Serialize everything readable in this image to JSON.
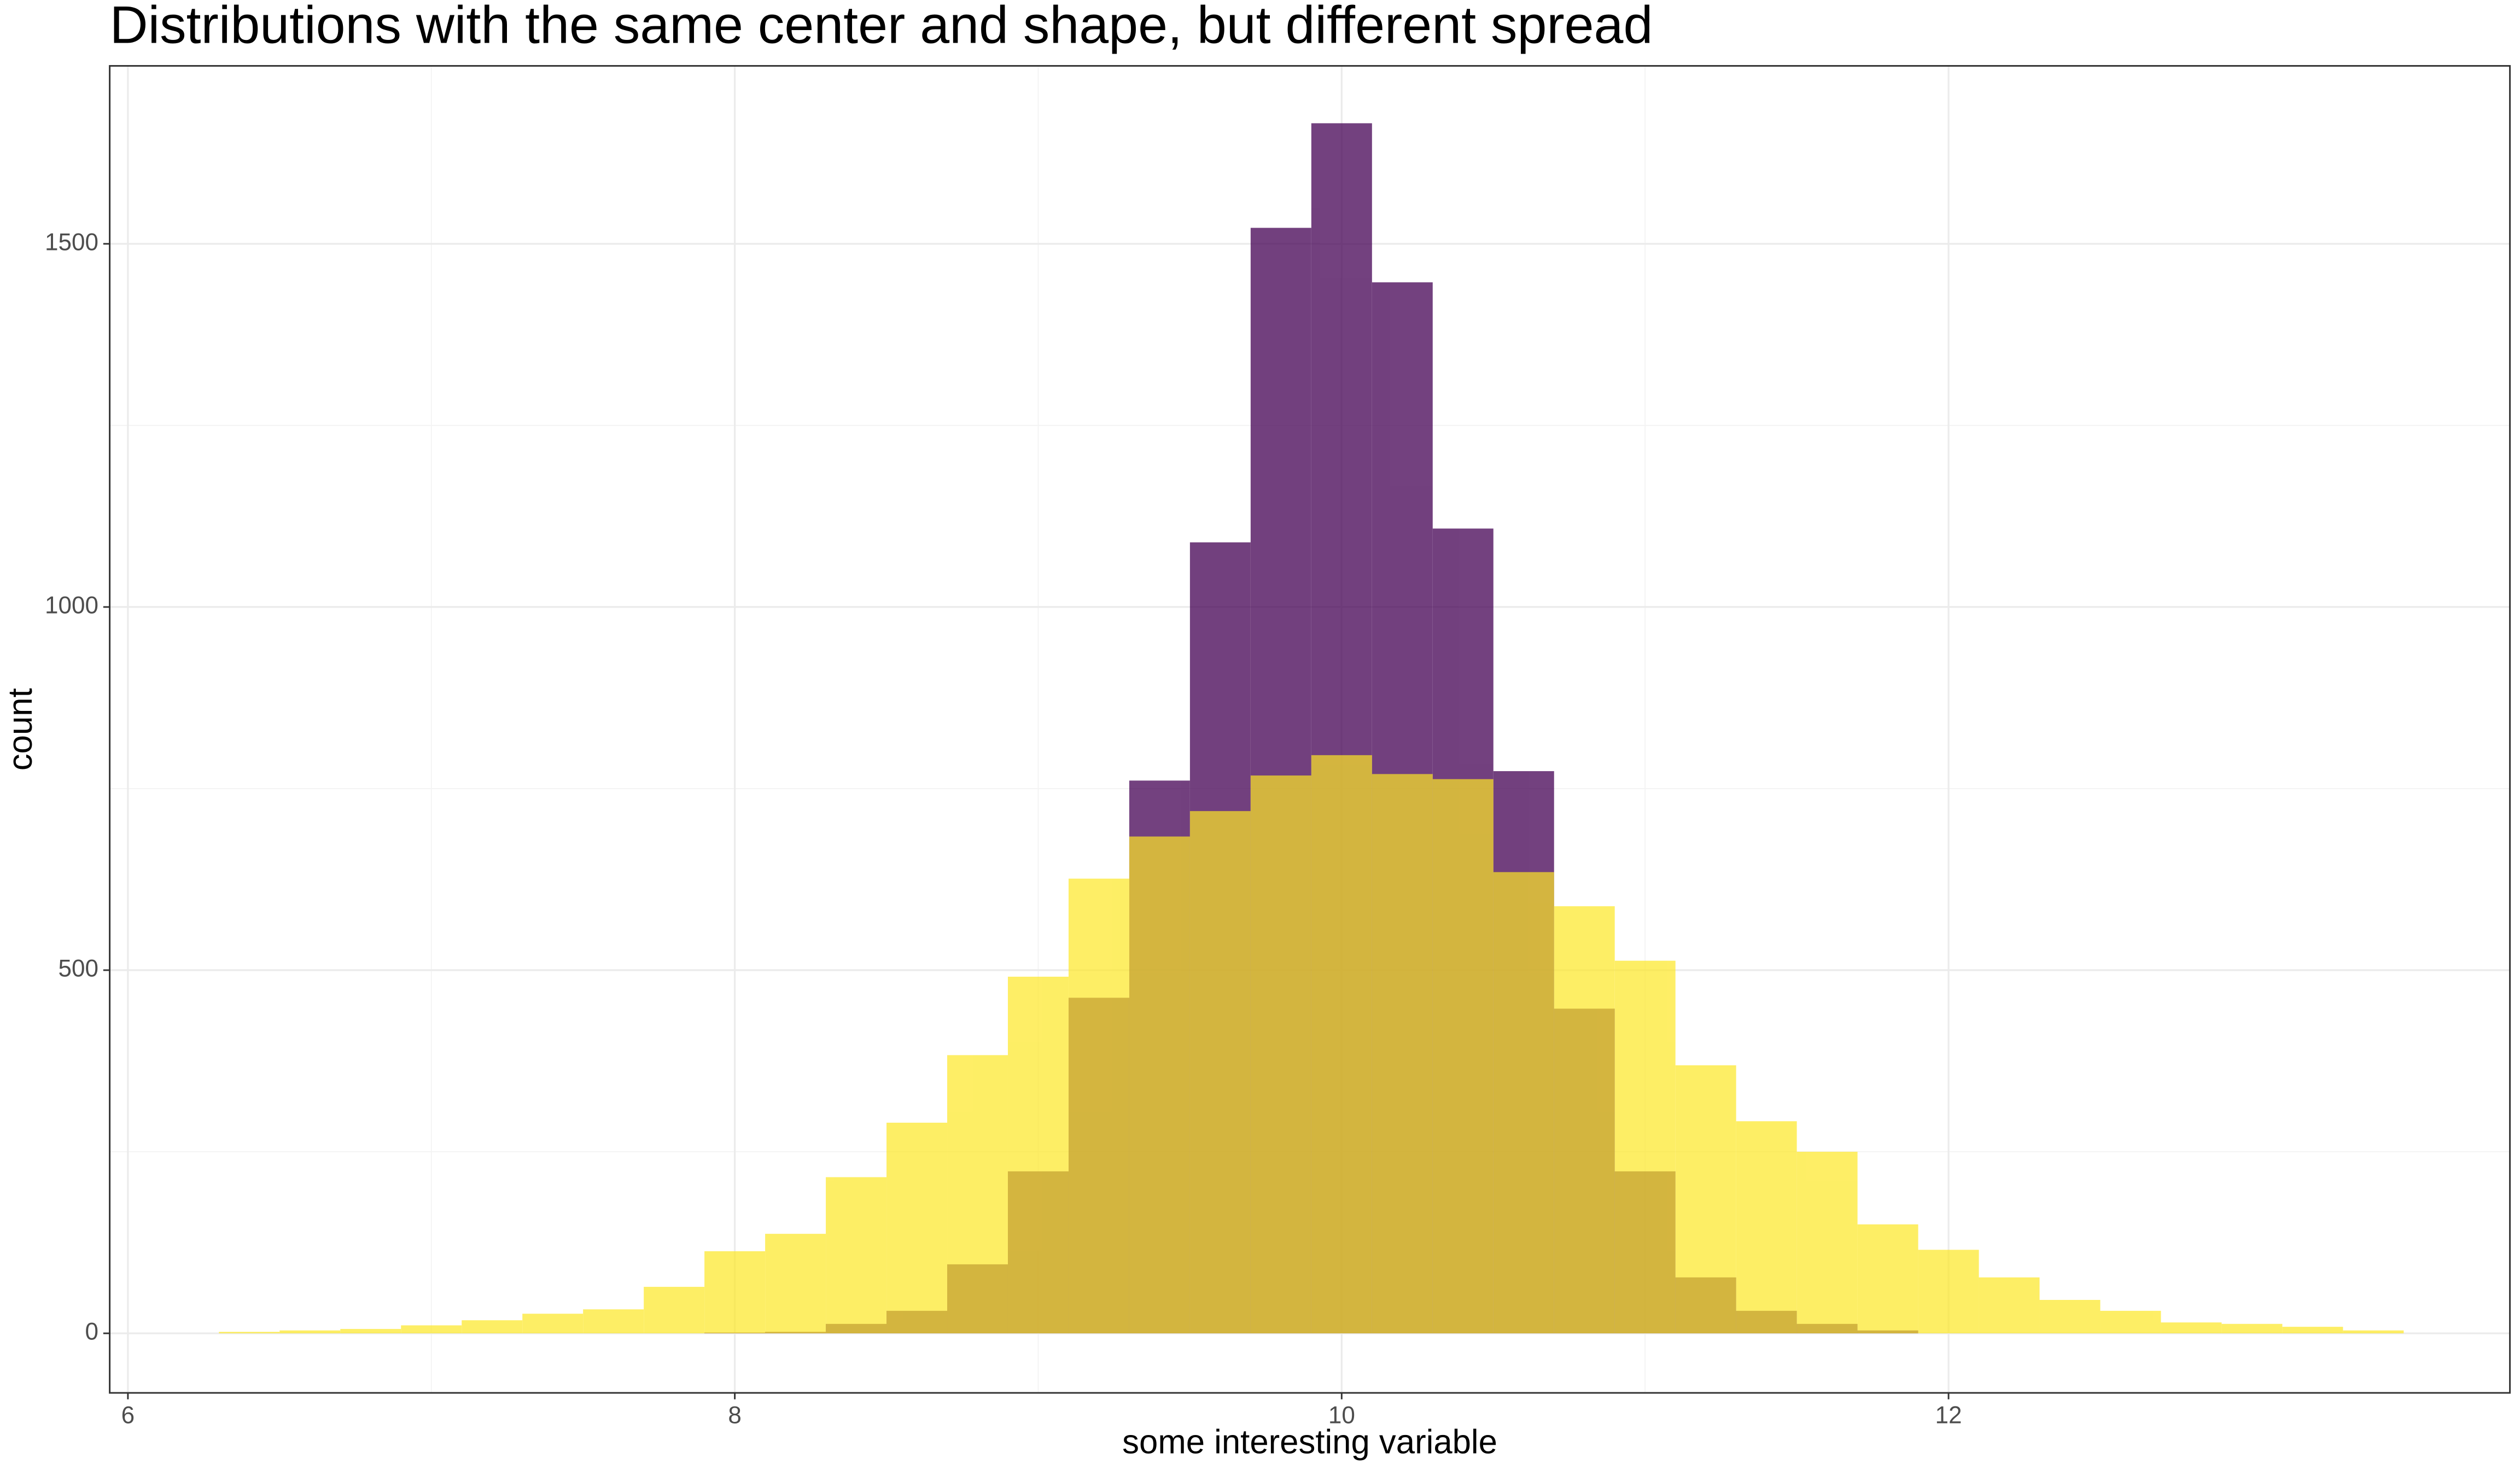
{
  "chart_data": {
    "type": "histogram",
    "title": "Distributions with the same center and shape, but different spread",
    "x_label": "some interesting variable",
    "y_label": "count",
    "bins": [
      6.3,
      6.5,
      6.7,
      6.9,
      7.1,
      7.3,
      7.5,
      7.7,
      7.9,
      8.1,
      8.3,
      8.5,
      8.7,
      8.9,
      9.1,
      9.3,
      9.5,
      9.7,
      9.9,
      10.1,
      10.3,
      10.5,
      10.7,
      10.9,
      11.1,
      11.3,
      11.5,
      11.7,
      11.9,
      12.1,
      12.3,
      12.5,
      12.7,
      12.9,
      13.1,
      13.3,
      13.5
    ],
    "series": [
      {
        "color": "#440154",
        "values": [
          0,
          0,
          0,
          0,
          0,
          0,
          0,
          0,
          1,
          2,
          13,
          31,
          95,
          223,
          462,
          761,
          1089,
          1522,
          1666,
          1447,
          1108,
          774,
          447,
          223,
          77,
          31,
          13,
          4,
          0,
          0,
          0,
          0,
          0,
          0,
          0,
          0
        ]
      },
      {
        "color": "#fde725",
        "values": [
          2,
          4,
          6,
          11,
          18,
          27,
          33,
          64,
          113,
          137,
          215,
          290,
          383,
          491,
          626,
          684,
          719,
          768,
          796,
          770,
          763,
          635,
          588,
          513,
          369,
          292,
          250,
          150,
          115,
          77,
          46,
          31,
          15,
          13,
          9,
          4
        ]
      }
    ],
    "xlim": [
      5.94,
      13.85
    ],
    "ylim": [
      -82,
      1745
    ],
    "xticks": [
      6,
      8,
      10,
      12
    ],
    "yticks": [
      0,
      500,
      1000,
      1500
    ],
    "grid": true
  }
}
